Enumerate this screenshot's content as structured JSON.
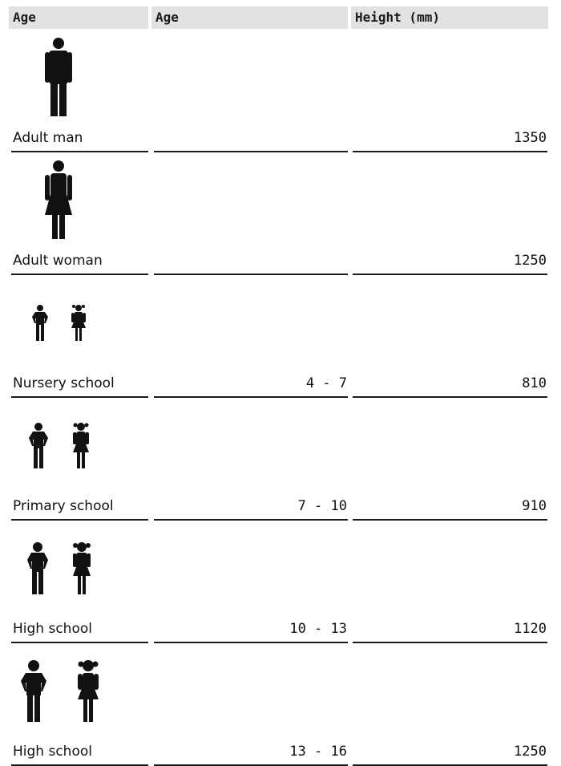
{
  "header": {
    "col1": "Age",
    "col2": "Age",
    "col3": "Height (mm)"
  },
  "rows": [
    {
      "label": "Adult man",
      "age": "",
      "height": "1350",
      "icons": [
        "man-icon"
      ]
    },
    {
      "label": "Adult woman",
      "age": "",
      "height": "1250",
      "icons": [
        "woman-icon"
      ]
    },
    {
      "label": "Nursery school",
      "age": "4 - 7",
      "height": "810",
      "icons": [
        "boy-icon",
        "girl-icon"
      ]
    },
    {
      "label": "Primary school",
      "age": "7 - 10",
      "height": "910",
      "icons": [
        "boy-icon",
        "girl-icon"
      ]
    },
    {
      "label": "High school",
      "age": "10 - 13",
      "height": "1120",
      "icons": [
        "boy-icon",
        "girl-icon"
      ]
    },
    {
      "label": "High school",
      "age": "13 - 16",
      "height": "1250",
      "icons": [
        "boy-icon",
        "girl-icon"
      ]
    }
  ]
}
